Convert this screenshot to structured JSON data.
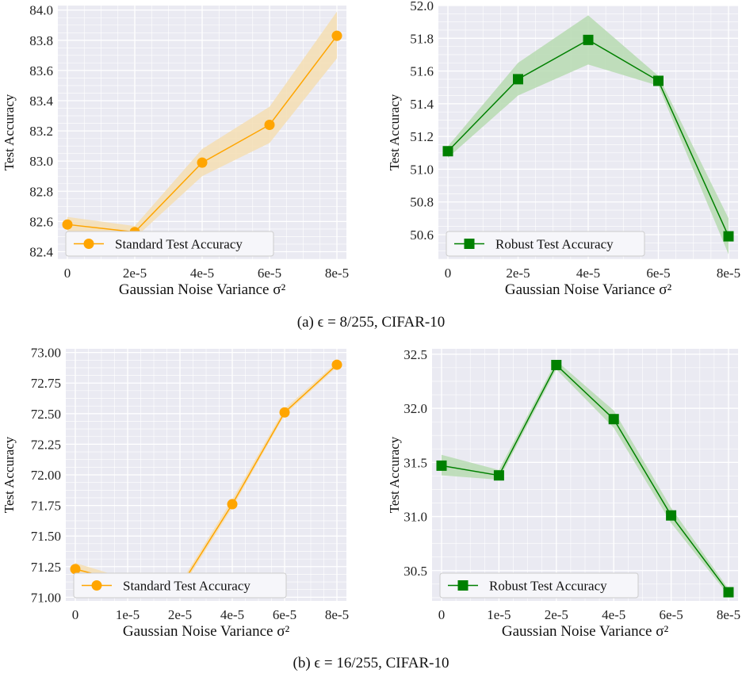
{
  "figure": {
    "caption_a": "(a) ϵ = 8/255, CIFAR-10",
    "caption_b": "(b) ϵ = 16/255, CIFAR-10"
  },
  "colors": {
    "standard": "#ffa500",
    "standard_band": "#f5deb3",
    "robust": "#008000",
    "robust_band": "#b7dab2",
    "plot_bg": "#eaeaf2",
    "grid": "#ffffff"
  },
  "chart_data": [
    {
      "type": "line",
      "panel": "a-left",
      "x": [
        "0",
        "2e-5",
        "4e-5",
        "6e-5",
        "8e-5"
      ],
      "xlabel": "Gaussian Noise Variance σ²",
      "ylabel": "Test Accuracy",
      "ylim": [
        82.35,
        84.03
      ],
      "yticks": [
        "82.4",
        "82.6",
        "82.8",
        "83.0",
        "83.2",
        "83.4",
        "83.6",
        "83.8",
        "84.0"
      ],
      "series": [
        {
          "name": "Standard Test Accuracy",
          "marker": "circle",
          "color": "#ffa500",
          "values": [
            82.58,
            82.53,
            82.99,
            83.24,
            83.83
          ],
          "lower": [
            82.53,
            82.49,
            82.9,
            83.12,
            83.68
          ],
          "upper": [
            82.63,
            82.57,
            83.08,
            83.36,
            83.99
          ]
        }
      ],
      "grid": true,
      "legend": "bottom-left"
    },
    {
      "type": "line",
      "panel": "a-right",
      "x": [
        "0",
        "2e-5",
        "4e-5",
        "6e-5",
        "8e-5"
      ],
      "xlabel": "Gaussian Noise Variance σ²",
      "ylabel": "Test Accuracy",
      "ylim": [
        50.45,
        52.0
      ],
      "yticks": [
        "50.6",
        "50.8",
        "51.0",
        "51.2",
        "51.4",
        "51.6",
        "51.8",
        "52.0"
      ],
      "series": [
        {
          "name": "Robust Test Accuracy",
          "marker": "square",
          "color": "#008000",
          "values": [
            51.11,
            51.55,
            51.79,
            51.54,
            50.59
          ],
          "lower": [
            51.07,
            51.45,
            51.64,
            51.51,
            50.48
          ],
          "upper": [
            51.14,
            51.65,
            51.94,
            51.57,
            50.7
          ]
        }
      ],
      "grid": true,
      "legend": "bottom-left"
    },
    {
      "type": "line",
      "panel": "b-left",
      "x": [
        "0",
        "1e-5",
        "2e-5",
        "4e-5",
        "6e-5",
        "8e-5"
      ],
      "xlabel": "Gaussian Noise Variance σ²",
      "ylabel": "Test Accuracy",
      "ylim": [
        70.97,
        73.03
      ],
      "yticks": [
        "71.00",
        "71.25",
        "71.50",
        "71.75",
        "72.00",
        "72.25",
        "72.50",
        "72.75",
        "73.00"
      ],
      "series": [
        {
          "name": "Standard Test Accuracy",
          "marker": "circle",
          "color": "#ffa500",
          "values": [
            71.23,
            71.12,
            71.08,
            71.76,
            72.51,
            72.9
          ],
          "lower": [
            71.19,
            71.09,
            71.05,
            71.73,
            72.49,
            72.88
          ],
          "upper": [
            71.28,
            71.15,
            71.11,
            71.8,
            72.54,
            72.92
          ]
        }
      ],
      "grid": true,
      "legend": "bottom-left"
    },
    {
      "type": "line",
      "panel": "b-right",
      "x": [
        "0",
        "1e-5",
        "2e-5",
        "4e-5",
        "6e-5",
        "8e-5"
      ],
      "xlabel": "Gaussian Noise Variance σ²",
      "ylabel": "Test Accuracy",
      "ylim": [
        30.22,
        32.55
      ],
      "yticks": [
        "30.5",
        "31.0",
        "31.5",
        "32.0",
        "32.5"
      ],
      "series": [
        {
          "name": "Robust Test Accuracy",
          "marker": "square",
          "color": "#008000",
          "values": [
            31.47,
            31.38,
            32.4,
            31.9,
            31.01,
            30.3
          ],
          "lower": [
            31.38,
            31.34,
            32.36,
            31.82,
            30.94,
            30.27
          ],
          "upper": [
            31.57,
            31.43,
            32.44,
            31.98,
            31.08,
            30.33
          ]
        }
      ],
      "grid": true,
      "legend": "bottom-left"
    }
  ]
}
